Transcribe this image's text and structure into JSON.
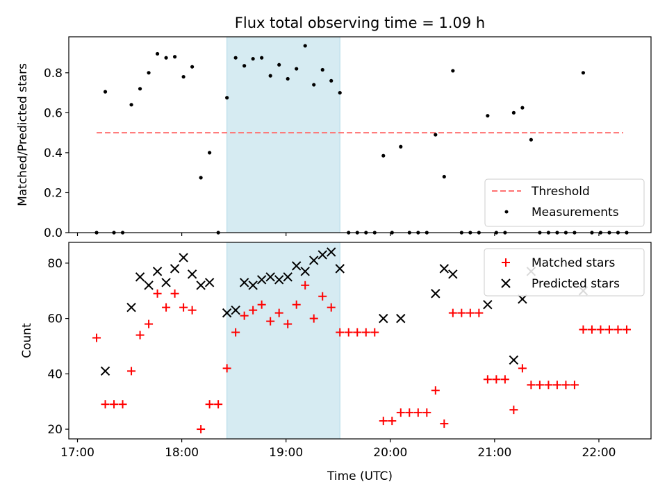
{
  "title": "Flux total observing time = 1.09 h",
  "xlabel": "Time (UTC)",
  "x_ticks": [
    "17:00",
    "18:00",
    "19:00",
    "20:00",
    "21:00",
    "22:00"
  ],
  "highlight_band": {
    "start": "18:26",
    "end": "19:31",
    "color": "#add8e6"
  },
  "chart_data": [
    {
      "type": "scatter",
      "ylabel": "Matched/Predicted stars",
      "ylim": [
        0,
        0.98
      ],
      "y_ticks": [
        "0.0",
        "0.2",
        "0.4",
        "0.6",
        "0.8"
      ],
      "threshold": {
        "name": "Threshold",
        "value": 0.5,
        "x_range": [
          "17:11",
          "22:14"
        ],
        "color": "#ff7070"
      },
      "legend": [
        "Threshold",
        "Measurements"
      ],
      "legend_position": "lower-right",
      "series": [
        {
          "name": "Measurements",
          "color": "#000000",
          "points": [
            [
              "17:11",
              0
            ],
            [
              "17:16",
              0.705
            ],
            [
              "17:21",
              0
            ],
            [
              "17:26",
              0
            ],
            [
              "17:31",
              0.64
            ],
            [
              "17:36",
              0.72
            ],
            [
              "17:41",
              0.8
            ],
            [
              "17:46",
              0.895
            ],
            [
              "17:51",
              0.875
            ],
            [
              "17:56",
              0.88
            ],
            [
              "18:01",
              0.78
            ],
            [
              "18:06",
              0.83
            ],
            [
              "18:11",
              0.275
            ],
            [
              "18:16",
              0.4
            ],
            [
              "18:21",
              0
            ],
            [
              "18:26",
              0.675
            ],
            [
              "18:31",
              0.875
            ],
            [
              "18:36",
              0.835
            ],
            [
              "18:41",
              0.87
            ],
            [
              "18:46",
              0.875
            ],
            [
              "18:51",
              0.785
            ],
            [
              "18:56",
              0.84
            ],
            [
              "19:01",
              0.77
            ],
            [
              "19:06",
              0.82
            ],
            [
              "19:11",
              0.935
            ],
            [
              "19:16",
              0.74
            ],
            [
              "19:21",
              0.815
            ],
            [
              "19:26",
              0.76
            ],
            [
              "19:31",
              0.7
            ],
            [
              "19:36",
              0
            ],
            [
              "19:41",
              0
            ],
            [
              "19:46",
              0
            ],
            [
              "19:51",
              0
            ],
            [
              "19:56",
              0.385
            ],
            [
              "20:01",
              0
            ],
            [
              "20:06",
              0.43
            ],
            [
              "20:11",
              0
            ],
            [
              "20:16",
              0
            ],
            [
              "20:21",
              0
            ],
            [
              "20:26",
              0.49
            ],
            [
              "20:31",
              0.28
            ],
            [
              "20:36",
              0.81
            ],
            [
              "20:41",
              0
            ],
            [
              "20:46",
              0
            ],
            [
              "20:51",
              0
            ],
            [
              "20:56",
              0.585
            ],
            [
              "21:01",
              0
            ],
            [
              "21:06",
              0
            ],
            [
              "21:11",
              0.6
            ],
            [
              "21:16",
              0.625
            ],
            [
              "21:21",
              0.465
            ],
            [
              "21:26",
              0
            ],
            [
              "21:31",
              0
            ],
            [
              "21:36",
              0
            ],
            [
              "21:41",
              0
            ],
            [
              "21:46",
              0
            ],
            [
              "21:51",
              0.8
            ],
            [
              "21:56",
              0
            ],
            [
              "22:01",
              0
            ],
            [
              "22:06",
              0
            ],
            [
              "22:11",
              0
            ],
            [
              "22:16",
              0
            ]
          ]
        }
      ]
    },
    {
      "type": "scatter",
      "ylabel": "Count",
      "ylim": [
        16.5,
        87.5
      ],
      "y_ticks": [
        "20",
        "40",
        "60",
        "80"
      ],
      "legend": [
        "Matched stars",
        "Predicted stars"
      ],
      "legend_position": "top-right",
      "series": [
        {
          "name": "Matched stars",
          "marker": "plus",
          "color": "#ff0000",
          "points": [
            [
              "17:11",
              53
            ],
            [
              "17:16",
              29
            ],
            [
              "17:21",
              29
            ],
            [
              "17:26",
              29
            ],
            [
              "17:31",
              41
            ],
            [
              "17:36",
              54
            ],
            [
              "17:41",
              58
            ],
            [
              "17:46",
              69
            ],
            [
              "17:51",
              64
            ],
            [
              "17:56",
              69
            ],
            [
              "18:01",
              64
            ],
            [
              "18:06",
              63
            ],
            [
              "18:11",
              20
            ],
            [
              "18:16",
              29
            ],
            [
              "18:21",
              29
            ],
            [
              "18:26",
              42
            ],
            [
              "18:31",
              55
            ],
            [
              "18:36",
              61
            ],
            [
              "18:41",
              63
            ],
            [
              "18:46",
              65
            ],
            [
              "18:51",
              59
            ],
            [
              "18:56",
              62
            ],
            [
              "19:01",
              58
            ],
            [
              "19:06",
              65
            ],
            [
              "19:11",
              72
            ],
            [
              "19:16",
              60
            ],
            [
              "19:21",
              68
            ],
            [
              "19:26",
              64
            ],
            [
              "19:31",
              55
            ],
            [
              "19:36",
              55
            ],
            [
              "19:41",
              55
            ],
            [
              "19:46",
              55
            ],
            [
              "19:51",
              55
            ],
            [
              "19:56",
              23
            ],
            [
              "20:01",
              23
            ],
            [
              "20:06",
              26
            ],
            [
              "20:11",
              26
            ],
            [
              "20:16",
              26
            ],
            [
              "20:21",
              26
            ],
            [
              "20:26",
              34
            ],
            [
              "20:31",
              22
            ],
            [
              "20:36",
              62
            ],
            [
              "20:41",
              62
            ],
            [
              "20:46",
              62
            ],
            [
              "20:51",
              62
            ],
            [
              "20:56",
              38
            ],
            [
              "21:01",
              38
            ],
            [
              "21:06",
              38
            ],
            [
              "21:11",
              27
            ],
            [
              "21:16",
              42
            ],
            [
              "21:21",
              36
            ],
            [
              "21:26",
              36
            ],
            [
              "21:31",
              36
            ],
            [
              "21:36",
              36
            ],
            [
              "21:41",
              36
            ],
            [
              "21:46",
              36
            ],
            [
              "21:51",
              56
            ],
            [
              "21:56",
              56
            ],
            [
              "22:01",
              56
            ],
            [
              "22:06",
              56
            ],
            [
              "22:11",
              56
            ],
            [
              "22:16",
              56
            ]
          ]
        },
        {
          "name": "Predicted stars",
          "marker": "x",
          "color": "#000000",
          "points": [
            [
              "17:16",
              41
            ],
            [
              "17:31",
              64
            ],
            [
              "17:36",
              75
            ],
            [
              "17:41",
              72
            ],
            [
              "17:46",
              77
            ],
            [
              "17:51",
              73
            ],
            [
              "17:56",
              78
            ],
            [
              "18:01",
              82
            ],
            [
              "18:06",
              76
            ],
            [
              "18:11",
              72
            ],
            [
              "18:16",
              73
            ],
            [
              "18:26",
              62
            ],
            [
              "18:31",
              63
            ],
            [
              "18:36",
              73
            ],
            [
              "18:41",
              72
            ],
            [
              "18:46",
              74
            ],
            [
              "18:51",
              75
            ],
            [
              "18:56",
              74
            ],
            [
              "19:01",
              75
            ],
            [
              "19:06",
              79
            ],
            [
              "19:11",
              77
            ],
            [
              "19:16",
              81
            ],
            [
              "19:21",
              83
            ],
            [
              "19:26",
              84
            ],
            [
              "19:31",
              78
            ],
            [
              "19:56",
              60
            ],
            [
              "20:06",
              60
            ],
            [
              "20:26",
              69
            ],
            [
              "20:31",
              78
            ],
            [
              "20:36",
              76
            ],
            [
              "20:56",
              65
            ],
            [
              "21:11",
              45
            ],
            [
              "21:16",
              67
            ],
            [
              "21:21",
              77
            ],
            [
              "21:51",
              70
            ]
          ]
        }
      ]
    }
  ]
}
